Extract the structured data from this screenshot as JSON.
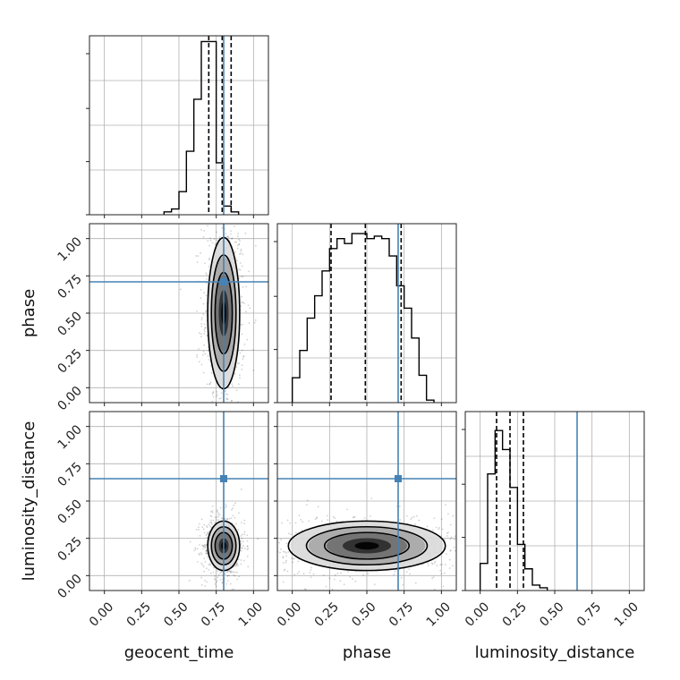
{
  "chart_data": {
    "type": "corner",
    "parameters": [
      "geocent_time",
      "phase",
      "luminosity_distance"
    ],
    "tick_values": [
      0.0,
      0.25,
      0.5,
      0.75,
      1.0
    ],
    "tick_labels": [
      "0.00",
      "0.25",
      "0.50",
      "0.75",
      "1.00"
    ],
    "xlim": [
      -0.1,
      1.1
    ],
    "ylim": [
      -0.1,
      1.1
    ],
    "grid": true,
    "truth_color": "#4682b4",
    "truths": {
      "geocent_time": 0.8,
      "phase": 0.71,
      "luminosity_distance": 0.65
    },
    "quantiles": {
      "geocent_time": [
        0.7,
        0.79,
        0.85
      ],
      "phase": [
        0.26,
        0.49,
        0.73
      ],
      "luminosity_distance": [
        0.11,
        0.2,
        0.29
      ]
    },
    "histograms": {
      "geocent_time": {
        "bin_start": 0.4,
        "bin_width": 0.05,
        "counts": [
          1,
          2,
          8,
          22,
          40,
          60,
          60,
          18,
          3,
          1
        ],
        "ymax": 62
      },
      "phase": {
        "bin_start": 0.0,
        "bin_width": 0.05,
        "counts": [
          10,
          21,
          34,
          43,
          53,
          62,
          66,
          64,
          68,
          68,
          66,
          67,
          66,
          59,
          47,
          38,
          26,
          11,
          1
        ],
        "ymax": 72
      },
      "luminosity_distance": {
        "bin_start": 0.0,
        "bin_width": 0.05,
        "counts": [
          10,
          43,
          59,
          52,
          38,
          17,
          8,
          2,
          1
        ],
        "ymax": 66
      }
    },
    "joint_2d": [
      {
        "x": "geocent_time",
        "y": "phase",
        "x_center": 0.8,
        "x_sigma": 0.055,
        "y_center": 0.5,
        "y_sigma": 0.26
      },
      {
        "x": "geocent_time",
        "y": "luminosity_distance",
        "x_center": 0.8,
        "x_sigma": 0.055,
        "y_center": 0.2,
        "y_sigma": 0.085
      },
      {
        "x": "phase",
        "y": "luminosity_distance",
        "x_center": 0.5,
        "x_sigma": 0.27,
        "y_center": 0.2,
        "y_sigma": 0.085
      }
    ]
  }
}
